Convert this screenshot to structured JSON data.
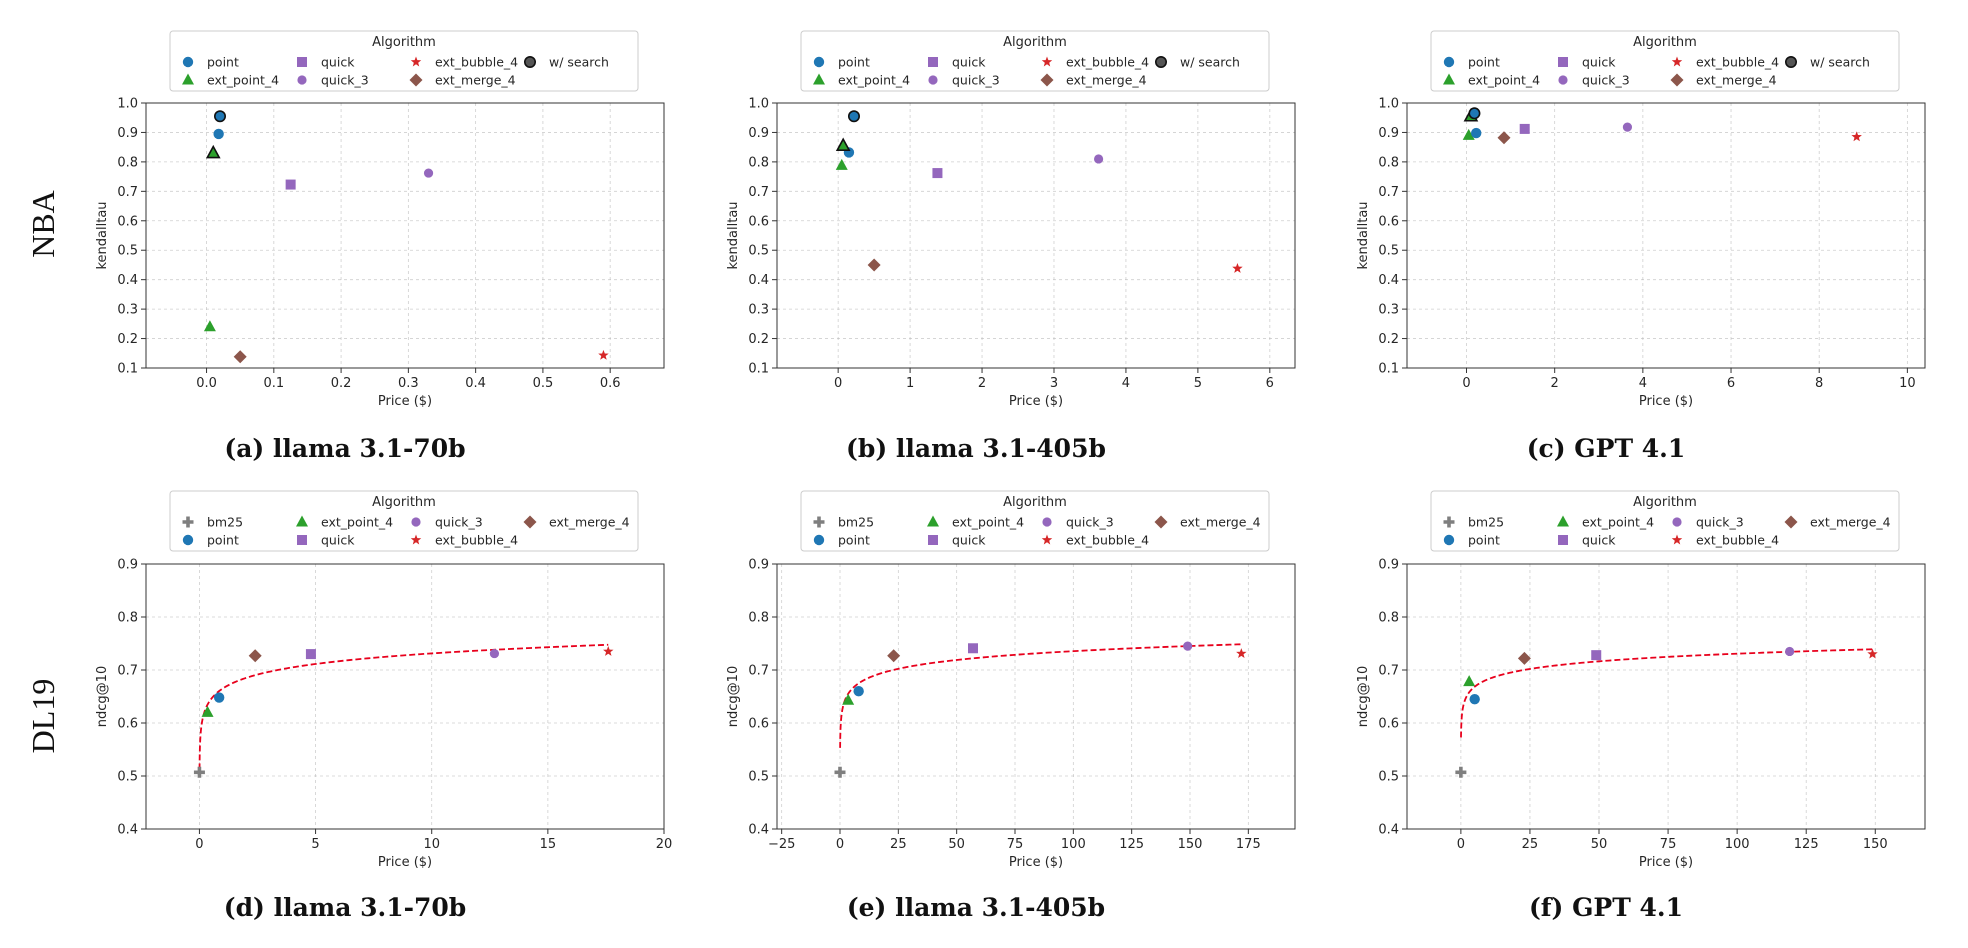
{
  "row_labels": [
    "NBA",
    "DL19"
  ],
  "colors": {
    "point": "#1f77b4",
    "ext_point_4": "#2ca02c",
    "quick": "#9467bd",
    "quick_3": "#9467bd",
    "ext_bubble_4": "#d62728",
    "ext_merge_4": "#8c564b",
    "w_search": "#555555",
    "bm25": "#7f7f7f",
    "fit": "#e8001c"
  },
  "chart_data": [
    {
      "id": "a",
      "type": "scatter",
      "caption": "(a) llama 3.1-70b",
      "xlabel": "Price ($)",
      "ylabel": "kendalltau",
      "xlim": [
        -0.09,
        0.68
      ],
      "ylim": [
        0.1,
        1.0
      ],
      "xticks": [
        "0.0",
        "0.1",
        "0.2",
        "0.3",
        "0.4",
        "0.5",
        "0.6"
      ],
      "xtick_values": [
        0,
        0.1,
        0.2,
        0.3,
        0.4,
        0.5,
        0.6
      ],
      "yticks": [
        "0.1",
        "0.2",
        "0.3",
        "0.4",
        "0.5",
        "0.6",
        "0.7",
        "0.8",
        "0.9",
        "1.0"
      ],
      "ytick_values": [
        0.1,
        0.2,
        0.3,
        0.4,
        0.5,
        0.6,
        0.7,
        0.8,
        0.9,
        1.0
      ],
      "grid": true,
      "legend": {
        "title": "Algorithm",
        "entries": [
          [
            "point",
            "quick",
            "ext_bubble_4",
            "w/ search"
          ],
          [
            "ext_point_4",
            "quick_3",
            "ext_merge_4"
          ]
        ],
        "keys": [
          [
            "point",
            "quick",
            "ext_bubble_4",
            "w_search"
          ],
          [
            "ext_point_4",
            "quick_3",
            "ext_merge_4"
          ]
        ]
      },
      "points": [
        {
          "series": "ext_point_4",
          "x": 0.005,
          "y": 0.24
        },
        {
          "series": "point",
          "x": 0.018,
          "y": 0.895
        },
        {
          "series": "ext_point_4",
          "x": 0.01,
          "y": 0.83,
          "search": true
        },
        {
          "series": "point",
          "x": 0.02,
          "y": 0.955,
          "search": true
        },
        {
          "series": "ext_merge_4",
          "x": 0.05,
          "y": 0.138
        },
        {
          "series": "quick",
          "x": 0.125,
          "y": 0.723
        },
        {
          "series": "quick_3",
          "x": 0.33,
          "y": 0.762
        },
        {
          "series": "ext_bubble_4",
          "x": 0.59,
          "y": 0.143
        }
      ]
    },
    {
      "id": "b",
      "type": "scatter",
      "caption": "(b) llama 3.1-405b",
      "xlabel": "Price ($)",
      "ylabel": "kendalltau",
      "xlim": [
        -0.85,
        6.35
      ],
      "ylim": [
        0.1,
        1.0
      ],
      "xticks": [
        "0",
        "1",
        "2",
        "3",
        "4",
        "5",
        "6"
      ],
      "xtick_values": [
        0,
        1,
        2,
        3,
        4,
        5,
        6
      ],
      "yticks": [
        "0.1",
        "0.2",
        "0.3",
        "0.4",
        "0.5",
        "0.6",
        "0.7",
        "0.8",
        "0.9",
        "1.0"
      ],
      "ytick_values": [
        0.1,
        0.2,
        0.3,
        0.4,
        0.5,
        0.6,
        0.7,
        0.8,
        0.9,
        1.0
      ],
      "grid": true,
      "legend": {
        "title": "Algorithm",
        "entries": [
          [
            "point",
            "quick",
            "ext_bubble_4",
            "w/ search"
          ],
          [
            "ext_point_4",
            "quick_3",
            "ext_merge_4"
          ]
        ],
        "keys": [
          [
            "point",
            "quick",
            "ext_bubble_4",
            "w_search"
          ],
          [
            "ext_point_4",
            "quick_3",
            "ext_merge_4"
          ]
        ]
      },
      "points": [
        {
          "series": "ext_point_4",
          "x": 0.05,
          "y": 0.788
        },
        {
          "series": "point",
          "x": 0.15,
          "y": 0.832
        },
        {
          "series": "ext_point_4",
          "x": 0.07,
          "y": 0.855,
          "search": true
        },
        {
          "series": "point",
          "x": 0.22,
          "y": 0.955,
          "search": true
        },
        {
          "series": "ext_merge_4",
          "x": 0.5,
          "y": 0.45
        },
        {
          "series": "quick",
          "x": 1.38,
          "y": 0.762
        },
        {
          "series": "quick_3",
          "x": 3.62,
          "y": 0.81
        },
        {
          "series": "ext_bubble_4",
          "x": 5.55,
          "y": 0.438
        }
      ]
    },
    {
      "id": "c",
      "type": "scatter",
      "caption": "(c) GPT 4.1",
      "xlabel": "Price ($)",
      "ylabel": "kendalltau",
      "xlim": [
        -1.35,
        10.4
      ],
      "ylim": [
        0.1,
        1.0
      ],
      "xticks": [
        "0",
        "2",
        "4",
        "6",
        "8",
        "10"
      ],
      "xtick_values": [
        0,
        2,
        4,
        6,
        8,
        10
      ],
      "yticks": [
        "0.1",
        "0.2",
        "0.3",
        "0.4",
        "0.5",
        "0.6",
        "0.7",
        "0.8",
        "0.9",
        "1.0"
      ],
      "ytick_values": [
        0.1,
        0.2,
        0.3,
        0.4,
        0.5,
        0.6,
        0.7,
        0.8,
        0.9,
        1.0
      ],
      "grid": true,
      "legend": {
        "title": "Algorithm",
        "entries": [
          [
            "point",
            "quick",
            "ext_bubble_4",
            "w/ search"
          ],
          [
            "ext_point_4",
            "quick_3",
            "ext_merge_4"
          ]
        ],
        "keys": [
          [
            "point",
            "quick",
            "ext_bubble_4",
            "w_search"
          ],
          [
            "ext_point_4",
            "quick_3",
            "ext_merge_4"
          ]
        ]
      },
      "points": [
        {
          "series": "ext_point_4",
          "x": 0.05,
          "y": 0.89
        },
        {
          "series": "point",
          "x": 0.22,
          "y": 0.898
        },
        {
          "series": "ext_point_4",
          "x": 0.1,
          "y": 0.955,
          "search": true
        },
        {
          "series": "point",
          "x": 0.18,
          "y": 0.965,
          "search": true
        },
        {
          "series": "ext_merge_4",
          "x": 0.85,
          "y": 0.882
        },
        {
          "series": "quick",
          "x": 1.32,
          "y": 0.912
        },
        {
          "series": "quick_3",
          "x": 3.65,
          "y": 0.918
        },
        {
          "series": "ext_bubble_4",
          "x": 8.85,
          "y": 0.885
        }
      ]
    },
    {
      "id": "d",
      "type": "scatter",
      "caption": "(d) llama 3.1-70b",
      "xlabel": "Price ($)",
      "ylabel": "ndcg@10",
      "xlim": [
        -2.3,
        20.0
      ],
      "ylim": [
        0.4,
        0.9
      ],
      "xticks": [
        "0",
        "5",
        "10",
        "15",
        "20"
      ],
      "xtick_values": [
        0,
        5,
        10,
        15,
        20
      ],
      "yticks": [
        "0.4",
        "0.5",
        "0.6",
        "0.7",
        "0.8",
        "0.9"
      ],
      "ytick_values": [
        0.4,
        0.5,
        0.6,
        0.7,
        0.8,
        0.9
      ],
      "grid": true,
      "legend": {
        "title": "Algorithm",
        "entries": [
          [
            "bm25",
            "ext_point_4",
            "quick_3",
            "ext_merge_4"
          ],
          [
            "point",
            "quick",
            "ext_bubble_4"
          ]
        ],
        "keys": [
          [
            "bm25",
            "ext_point_4",
            "quick_3",
            "ext_merge_4"
          ],
          [
            "point",
            "quick",
            "ext_bubble_4"
          ]
        ]
      },
      "fit": {
        "a": 0.665,
        "b": 0.0288,
        "x_start": 0.005,
        "x_end": 17.6,
        "y_floor": 0.505
      },
      "points": [
        {
          "series": "bm25",
          "x": 0.0,
          "y": 0.507
        },
        {
          "series": "ext_point_4",
          "x": 0.35,
          "y": 0.62
        },
        {
          "series": "point",
          "x": 0.85,
          "y": 0.648
        },
        {
          "series": "ext_merge_4",
          "x": 2.4,
          "y": 0.727
        },
        {
          "series": "quick",
          "x": 4.8,
          "y": 0.73
        },
        {
          "series": "quick_3",
          "x": 12.7,
          "y": 0.731
        },
        {
          "series": "ext_bubble_4",
          "x": 17.6,
          "y": 0.735
        }
      ]
    },
    {
      "id": "e",
      "type": "scatter",
      "caption": "(e) llama 3.1-405b",
      "xlabel": "Price ($)",
      "ylabel": "ndcg@10",
      "xlim": [
        -27.0,
        195.0
      ],
      "ylim": [
        0.4,
        0.9
      ],
      "xticks": [
        "−25",
        "0",
        "25",
        "50",
        "75",
        "100",
        "125",
        "150",
        "175"
      ],
      "xtick_values": [
        -25,
        0,
        25,
        50,
        75,
        100,
        125,
        150,
        175
      ],
      "yticks": [
        "0.4",
        "0.5",
        "0.6",
        "0.7",
        "0.8",
        "0.9"
      ],
      "ytick_values": [
        0.4,
        0.5,
        0.6,
        0.7,
        0.8,
        0.9
      ],
      "grid": true,
      "legend": {
        "title": "Algorithm",
        "entries": [
          [
            "bm25",
            "ext_point_4",
            "quick_3",
            "ext_merge_4"
          ],
          [
            "point",
            "quick",
            "ext_bubble_4"
          ]
        ],
        "keys": [
          [
            "bm25",
            "ext_point_4",
            "quick_3",
            "ext_merge_4"
          ],
          [
            "point",
            "quick",
            "ext_bubble_4"
          ]
        ]
      },
      "fit": {
        "a": 0.625,
        "b": 0.024,
        "x_start": 0.05,
        "x_end": 172.0,
        "y_floor": 0.505
      },
      "points": [
        {
          "series": "bm25",
          "x": 0.0,
          "y": 0.507
        },
        {
          "series": "ext_point_4",
          "x": 3.5,
          "y": 0.643
        },
        {
          "series": "point",
          "x": 8.0,
          "y": 0.66
        },
        {
          "series": "ext_merge_4",
          "x": 23.0,
          "y": 0.727
        },
        {
          "series": "quick",
          "x": 57.0,
          "y": 0.741
        },
        {
          "series": "quick_3",
          "x": 149.0,
          "y": 0.745
        },
        {
          "series": "ext_bubble_4",
          "x": 172.0,
          "y": 0.731
        }
      ]
    },
    {
      "id": "f",
      "type": "scatter",
      "caption": "(f) GPT 4.1",
      "xlabel": "Price ($)",
      "ylabel": "ndcg@10",
      "xlim": [
        -19.5,
        168.0
      ],
      "ylim": [
        0.4,
        0.9
      ],
      "xticks": [
        "0",
        "25",
        "50",
        "75",
        "100",
        "125",
        "150"
      ],
      "xtick_values": [
        0,
        25,
        50,
        75,
        100,
        125,
        150
      ],
      "yticks": [
        "0.4",
        "0.5",
        "0.6",
        "0.7",
        "0.8",
        "0.9"
      ],
      "ytick_values": [
        0.4,
        0.5,
        0.6,
        0.7,
        0.8,
        0.9
      ],
      "grid": true,
      "legend": {
        "title": "Algorithm",
        "entries": [
          [
            "bm25",
            "ext_point_4",
            "quick_3",
            "ext_merge_4"
          ],
          [
            "point",
            "quick",
            "ext_bubble_4"
          ]
        ],
        "keys": [
          [
            "bm25",
            "ext_point_4",
            "quick_3",
            "ext_merge_4"
          ],
          [
            "point",
            "quick",
            "ext_bubble_4"
          ]
        ]
      },
      "fit": {
        "a": 0.635,
        "b": 0.0208,
        "x_start": 0.05,
        "x_end": 149.0,
        "y_floor": 0.505
      },
      "points": [
        {
          "series": "bm25",
          "x": 0.0,
          "y": 0.507
        },
        {
          "series": "ext_point_4",
          "x": 3.0,
          "y": 0.678
        },
        {
          "series": "point",
          "x": 5.0,
          "y": 0.645
        },
        {
          "series": "ext_merge_4",
          "x": 23.0,
          "y": 0.722
        },
        {
          "series": "quick",
          "x": 49.0,
          "y": 0.728
        },
        {
          "series": "quick_3",
          "x": 119.0,
          "y": 0.735
        },
        {
          "series": "ext_bubble_4",
          "x": 149.0,
          "y": 0.73
        }
      ]
    }
  ]
}
